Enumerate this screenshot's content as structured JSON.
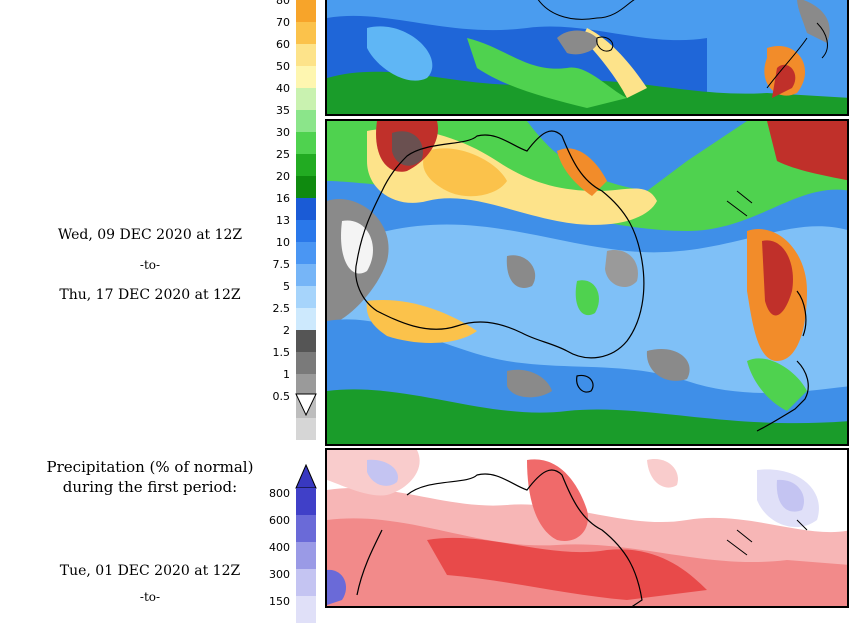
{
  "period_block": {
    "start": "Wed, 09 DEC 2020 at 12Z",
    "to": "-to-",
    "end": "Thu, 17 DEC 2020 at 12Z"
  },
  "amount_legend": {
    "ticks": [
      "80",
      "70",
      "60",
      "50",
      "40",
      "35",
      "30",
      "25",
      "20",
      "16",
      "13",
      "10",
      "7.5",
      "5",
      "2.5",
      "2",
      "1.5",
      "1",
      "0.5"
    ],
    "colors": [
      "#f7a42a",
      "#fbc24b",
      "#fde38a",
      "#fef6b0",
      "#c9f2b0",
      "#8be58a",
      "#4fd24f",
      "#22ab22",
      "#0f8a0f",
      "#1a5bd6",
      "#2a78ea",
      "#4a96f3",
      "#76b5f7",
      "#a6d4fb",
      "#cde9fd",
      "#555555",
      "#7a7a7a",
      "#9a9a9a",
      "#bdbdbd",
      "#d6d6d6"
    ]
  },
  "anomaly_block": {
    "title_line1": "Precipitation (% of normal)",
    "title_line2": "during the first period:",
    "start": "Tue, 01 DEC 2020 at 12Z",
    "to_partial": "-to-"
  },
  "anomaly_legend": {
    "ticks": [
      "800",
      "600",
      "400",
      "300",
      "150"
    ],
    "colors": [
      "#4040c8",
      "#6a6ad8",
      "#9a9ae6",
      "#c4c4f2",
      "#e0e0f8"
    ]
  }
}
